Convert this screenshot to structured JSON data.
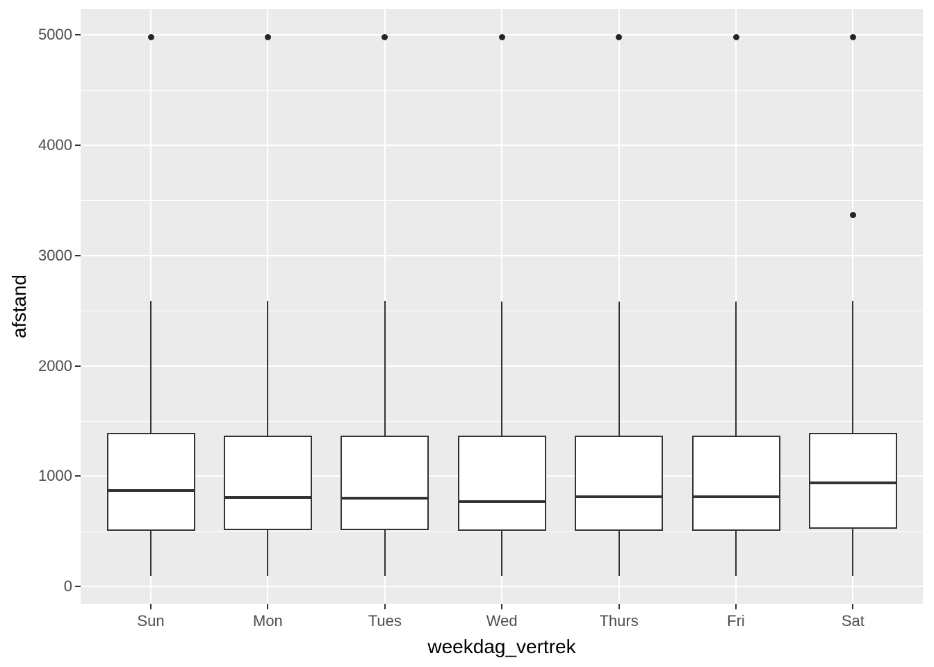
{
  "chart_data": {
    "type": "boxplot",
    "title": "",
    "xlabel": "weekdag_vertrek",
    "ylabel": "afstand",
    "categories": [
      "Sun",
      "Mon",
      "Tues",
      "Wed",
      "Thurs",
      "Fri",
      "Sat"
    ],
    "y_major_ticks": [
      0,
      1000,
      2000,
      3000,
      4000,
      5000
    ],
    "y_minor_ticks": [
      500,
      1500,
      2500,
      3500,
      4500
    ],
    "ylim": [
      -160,
      5235
    ],
    "grid": "on",
    "legend_position": "none",
    "series": [
      {
        "category": "Sun",
        "whisker_low": 95,
        "q1": 505,
        "median": 870,
        "q3": 1390,
        "whisker_high": 2590,
        "outliers": [
          4980
        ]
      },
      {
        "category": "Mon",
        "whisker_low": 95,
        "q1": 510,
        "median": 805,
        "q3": 1370,
        "whisker_high": 2590,
        "outliers": [
          4980
        ]
      },
      {
        "category": "Tues",
        "whisker_low": 95,
        "q1": 510,
        "median": 800,
        "q3": 1370,
        "whisker_high": 2590,
        "outliers": [
          4980
        ]
      },
      {
        "category": "Wed",
        "whisker_low": 95,
        "q1": 505,
        "median": 770,
        "q3": 1370,
        "whisker_high": 2585,
        "outliers": [
          4980
        ]
      },
      {
        "category": "Thurs",
        "whisker_low": 95,
        "q1": 505,
        "median": 815,
        "q3": 1370,
        "whisker_high": 2585,
        "outliers": [
          4980
        ]
      },
      {
        "category": "Fri",
        "whisker_low": 95,
        "q1": 505,
        "median": 810,
        "q3": 1370,
        "whisker_high": 2585,
        "outliers": [
          4980
        ]
      },
      {
        "category": "Sat",
        "whisker_low": 95,
        "q1": 525,
        "median": 940,
        "q3": 1390,
        "whisker_high": 2590,
        "outliers": [
          4980,
          3370
        ]
      }
    ],
    "colors": {
      "panel_background": "#EBEBEB",
      "gridline": "#FFFFFF",
      "box_fill": "#FFFFFF",
      "box_stroke": "#333333",
      "outlier": "#252525",
      "tick_label": "#4D4D4D",
      "axis_title": "#000000"
    }
  }
}
